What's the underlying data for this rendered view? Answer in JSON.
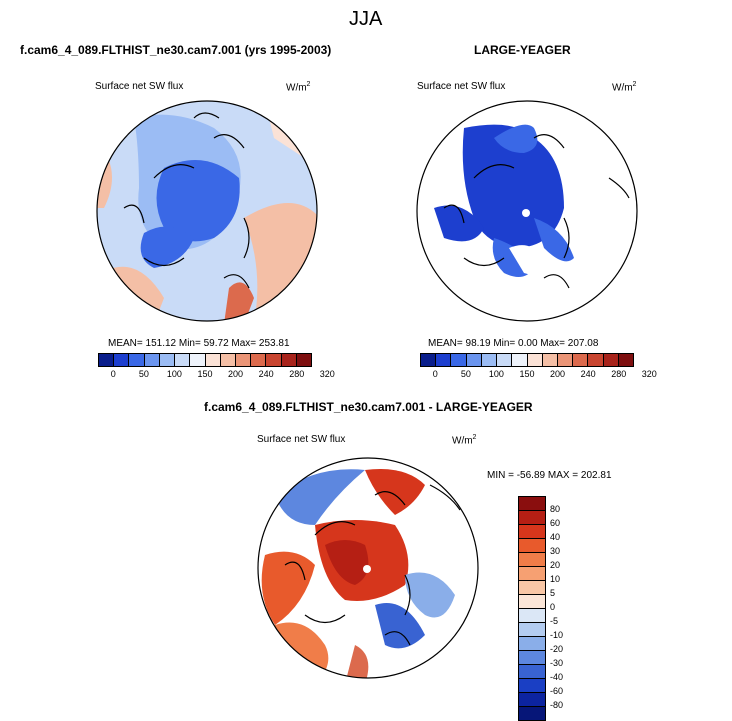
{
  "title": "JJA",
  "panels": [
    {
      "heading": "f.cam6_4_089.FLTHIST_ne30.cam7.001 (yrs 1995-2003)",
      "var": "Surface net SW flux",
      "units": "W/m",
      "units_sup": "2",
      "stats": "MEAN= 151.12  Min=  59.72  Max= 253.81"
    },
    {
      "heading": "LARGE-YEAGER",
      "var": "Surface net SW flux",
      "units": "W/m",
      "units_sup": "2",
      "stats": "MEAN=  98.19  Min=   0.00  Max= 207.08"
    },
    {
      "heading": "f.cam6_4_089.FLTHIST_ne30.cam7.001 - LARGE-YEAGER",
      "var": "Surface net SW flux",
      "units": "W/m",
      "units_sup": "2",
      "stats": "MIN = -56.89 MAX = 202.81"
    }
  ],
  "colorbar_abs": {
    "ticks": [
      "0",
      "50",
      "100",
      "150",
      "200",
      "240",
      "280",
      "320"
    ],
    "colors": [
      "#0a1e8c",
      "#1d3fcf",
      "#3a68e6",
      "#6b95ef",
      "#9bbcf4",
      "#c9dbf7",
      "#eef3fb",
      "#fbe2d6",
      "#f4bfa6",
      "#eb9577",
      "#dc6a4d",
      "#c94530",
      "#a8231b",
      "#7e0f10"
    ]
  },
  "colorbar_diff": {
    "ticks": [
      "80",
      "60",
      "40",
      "30",
      "20",
      "10",
      "5",
      "0",
      "-5",
      "-10",
      "-20",
      "-30",
      "-40",
      "-60",
      "-80"
    ],
    "colors": [
      "#8a0e0e",
      "#b51f14",
      "#d6361c",
      "#e85a2c",
      "#f07d49",
      "#f6a072",
      "#f9c7a6",
      "#fbe6d8",
      "#dbe7f6",
      "#b3ccf0",
      "#8aaee9",
      "#5d87df",
      "#3963d2",
      "#1a3fc4",
      "#0c24a0",
      "#061678"
    ]
  },
  "icons": {
    "pole_marker": "pole-dot-icon"
  }
}
